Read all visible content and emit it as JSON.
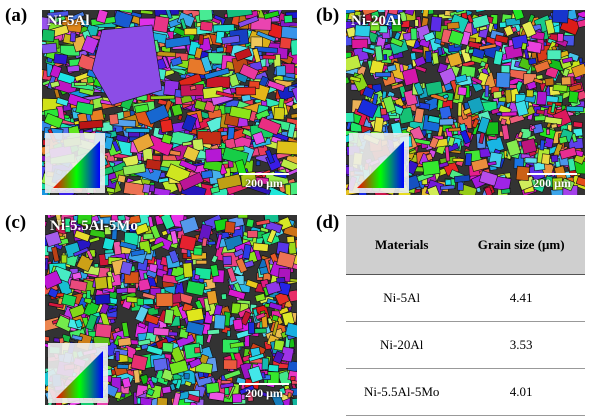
{
  "panels": [
    {
      "label": "(a)",
      "title": "Ni-5Al",
      "scale_bar": "200 μm"
    },
    {
      "label": "(b)",
      "title": "Ni-20Al",
      "scale_bar": "200 μm"
    },
    {
      "label": "(c)",
      "title": "Ni-5.5Al-5Mo",
      "scale_bar": "200 μm"
    }
  ],
  "table": {
    "label": "(d)",
    "header": [
      "Materials",
      "Grain size (μm)"
    ],
    "rows": [
      [
        "Ni-5Al",
        4.41
      ],
      [
        "Ni-20Al",
        3.53
      ],
      [
        "Ni-5.5Al-5Mo",
        4.01
      ]
    ]
  }
}
